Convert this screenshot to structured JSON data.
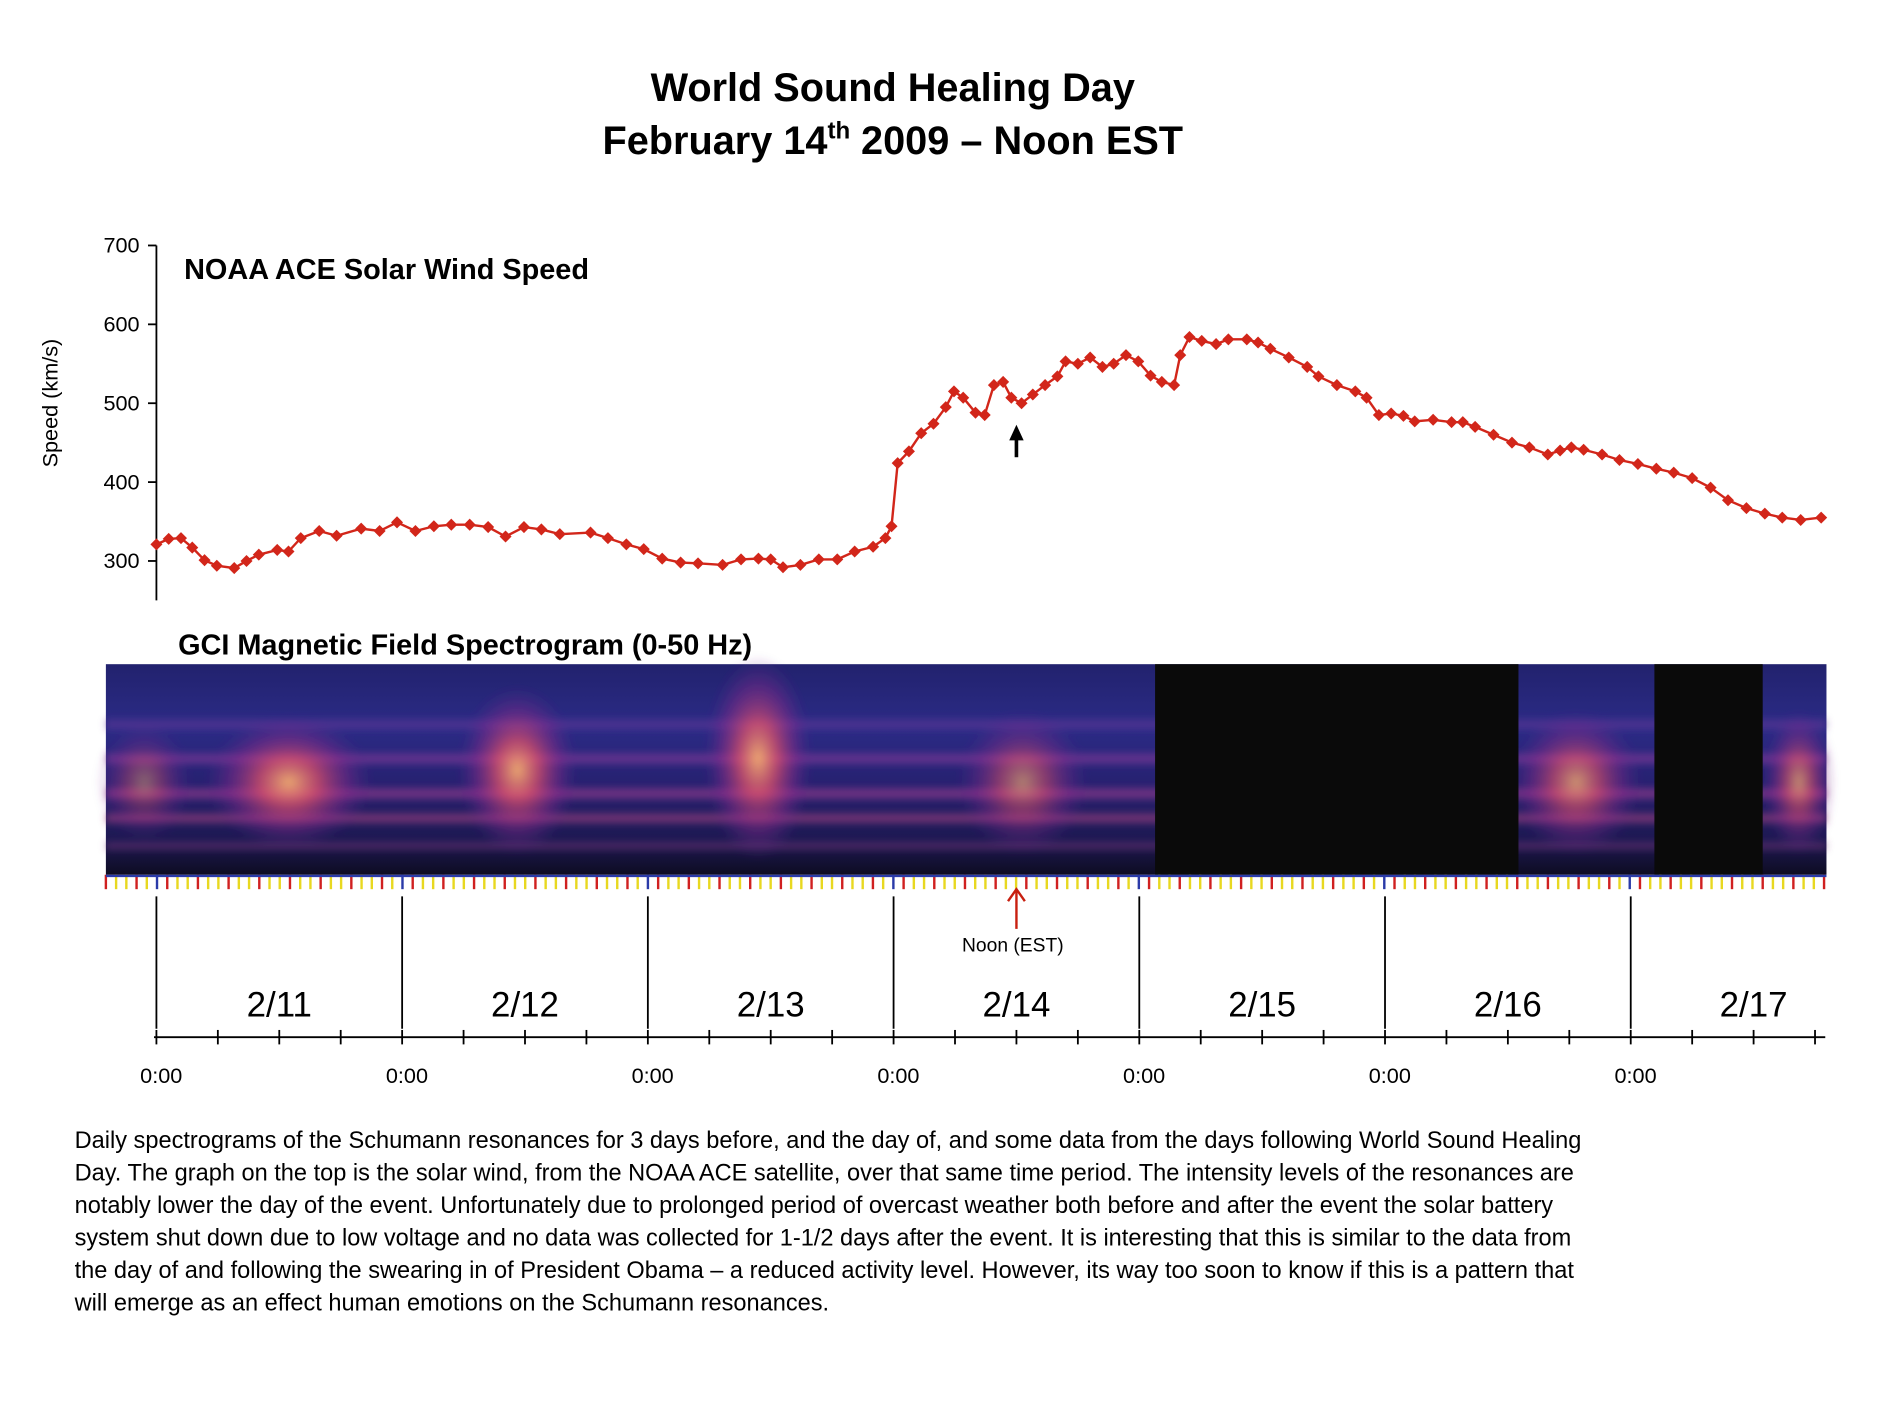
{
  "header": {
    "title": "World Sound Healing Day",
    "subtitle": {
      "date": "February 14",
      "ordinal": "th",
      "rest": "2009 – Noon EST"
    }
  },
  "chart_data": {
    "type": "line",
    "title": "NOAA ACE Solar Wind Speed",
    "y_label": "Speed (km/s)",
    "color": "#d2261a",
    "marker": "diamond",
    "x": [
      0,
      1.2,
      2.4,
      3.5,
      4.7,
      5.9,
      7.6,
      8.8,
      10,
      11.8,
      12.9,
      14.1,
      15.9,
      17.6,
      20,
      21.8,
      23.5,
      25.3,
      27.1,
      28.8,
      30.6,
      32.4,
      34.1,
      35.9,
      37.6,
      39.4,
      42.4,
      44.1,
      45.9,
      47.6,
      49.4,
      51.2,
      52.9,
      55.3,
      57.1,
      58.8,
      60,
      61.2,
      62.9,
      64.7,
      66.5,
      68.2,
      70,
      71.2,
      71.8,
      72.4,
      73.5,
      74.7,
      75.9,
      77.1,
      77.9,
      78.8,
      80,
      80.9,
      81.8,
      82.7,
      83.5,
      84.5,
      85.6,
      86.8,
      88,
      88.8,
      90,
      91.2,
      92.4,
      93.5,
      94.7,
      95.9,
      97.1,
      98.2,
      99.4,
      100,
      100.9,
      102.1,
      103.5,
      104.7,
      106.5,
      107.6,
      108.8,
      110.6,
      112.4,
      113.5,
      115.3,
      117.1,
      118.2,
      119.4,
      120.6,
      121.8,
      122.9,
      124.7,
      126.5,
      127.6,
      128.8,
      130.6,
      132.4,
      134.1,
      135.9,
      137.1,
      138.2,
      139.4,
      141.2,
      142.9,
      144.7,
      146.5,
      148.2,
      150,
      151.8,
      153.5,
      155.3,
      157.1,
      158.8,
      160.6,
      162.6
    ],
    "values": [
      321,
      328,
      329,
      317,
      301,
      294,
      291,
      300,
      308,
      314,
      312,
      329,
      338,
      332,
      341,
      338,
      349,
      338,
      344,
      346,
      346,
      343,
      331,
      343,
      340,
      334,
      336,
      329,
      321,
      315,
      303,
      298,
      297,
      295,
      302,
      303,
      302,
      292,
      295,
      302,
      302,
      312,
      318,
      329,
      344,
      424,
      439,
      462,
      474,
      495,
      515,
      507,
      488,
      485,
      523,
      527,
      507,
      500,
      511,
      523,
      534,
      553,
      550,
      558,
      546,
      550,
      561,
      553,
      535,
      527,
      523,
      561,
      584,
      579,
      575,
      581,
      581,
      577,
      569,
      558,
      546,
      534,
      523,
      515,
      507,
      485,
      487,
      484,
      477,
      479,
      476,
      476,
      470,
      460,
      450,
      444,
      435,
      440,
      444,
      441,
      435,
      428,
      423,
      417,
      412,
      405,
      393,
      377,
      367,
      360,
      355,
      352,
      355
    ],
    "xlim": [
      0,
      163
    ],
    "ylim": [
      250,
      700
    ],
    "yticks": [
      300,
      400,
      500,
      600,
      700
    ],
    "xticks": [
      {
        "value": 0,
        "label": "0:00"
      },
      {
        "value": 24,
        "label": "0:00"
      },
      {
        "value": 48,
        "label": "0:00"
      },
      {
        "value": 72,
        "label": "0:00"
      },
      {
        "value": 96,
        "label": "0:00"
      },
      {
        "value": 120,
        "label": "0:00"
      },
      {
        "value": 144,
        "label": "0:00"
      }
    ],
    "xminor": [
      6,
      12,
      18,
      30,
      36,
      42,
      54,
      60,
      66,
      78,
      84,
      90,
      102,
      108,
      114,
      126,
      132,
      138,
      150,
      156,
      162
    ],
    "days": [
      "2/11",
      "2/12",
      "2/13",
      "2/14",
      "2/15",
      "2/16",
      "2/17"
    ],
    "annotation": {
      "text": "Noon (EST)",
      "x": 84
    },
    "spectrogram_title": "GCI Magnetic Field Spectrogram (0-50 Hz)"
  },
  "caption": [
    "Daily spectrograms of the Schumann resonances for 3 days before, and the day of, and some data from the days following World Sound Healing",
    "Day. The graph on the top is the solar wind, from the NOAA ACE satellite, over that same time period. The intensity levels of the resonances are",
    "notably lower the day of the event. Unfortunately due to prolonged period of overcast weather both before and after the event the solar battery",
    "system shut down due to low voltage and no data was collected for 1-1/2 days after the event. It is interesting that this is similar to the data from",
    "the day of and following the swearing in of President Obama – a reduced activity level. However, its way too soon to know if this is a pattern that",
    "will emerge as an effect human emotions on the Schumann resonances."
  ]
}
